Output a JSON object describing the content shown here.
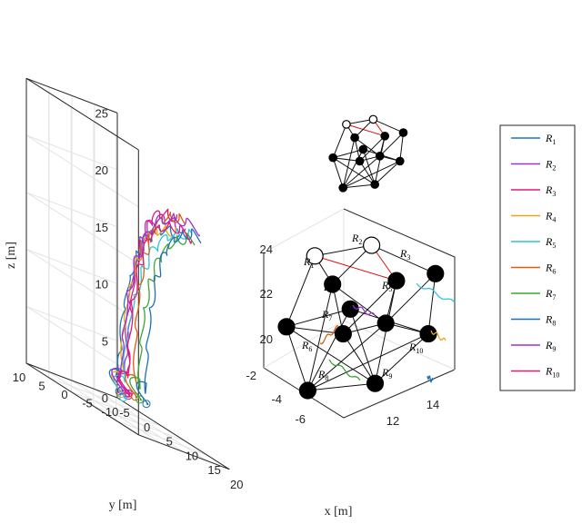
{
  "chart_data": {
    "type": "line",
    "subtype": "3d-trajectories",
    "xlabel": "x [m]",
    "ylabel": "y [m]",
    "zlabel": "z [m]",
    "xlim": [
      -5,
      20
    ],
    "ylim": [
      -10,
      10
    ],
    "zlim": [
      0,
      25
    ],
    "x_ticks": [
      "-5",
      "0",
      "5",
      "10",
      "15",
      "20"
    ],
    "y_ticks": [
      "-10",
      "-5",
      "0",
      "5",
      "10"
    ],
    "z_ticks": [
      "0",
      "5",
      "10",
      "15",
      "20",
      "25"
    ],
    "grid": true,
    "legend_position": "right",
    "series": [
      {
        "name": "R1",
        "color": "#1f77b4",
        "start_x": 0.5,
        "start_y": -5,
        "end_x": 15.5,
        "end_y": -3.2,
        "offset": -4
      },
      {
        "name": "R2",
        "color": "#9933cc",
        "start_x": 0.0,
        "start_y": -7,
        "end_x": 17.5,
        "end_y": -2.6,
        "offset": 6
      },
      {
        "name": "R3",
        "color": "#e0197d",
        "start_x": 1.5,
        "start_y": -6,
        "end_x": 15.5,
        "end_y": -3.0,
        "offset": 2
      },
      {
        "name": "R4",
        "color": "#e6a817",
        "start_x": 2.0,
        "start_y": -4,
        "end_x": 16.0,
        "end_y": -2.6,
        "offset": -2
      },
      {
        "name": "R5",
        "color": "#2ec4dd",
        "start_x": 4.5,
        "start_y": -2,
        "end_x": 18.5,
        "end_y": -3.5,
        "offset": -6
      },
      {
        "name": "R6",
        "color": "#d95f0e",
        "start_x": 0.0,
        "start_y": -9,
        "end_x": 15.0,
        "end_y": -5.0,
        "offset": 0
      },
      {
        "name": "R7",
        "color": "#3aa635",
        "start_x": 1.0,
        "start_y": -9,
        "end_x": 16.0,
        "end_y": -6.0,
        "offset": -8
      },
      {
        "name": "R8",
        "color": "#1f6fb4",
        "start_x": 2.5,
        "start_y": -9,
        "end_x": 17.5,
        "end_y": -6.0,
        "offset": -3
      },
      {
        "name": "R9",
        "color": "#9933cc",
        "start_x": -1.0,
        "start_y": -7,
        "end_x": 18.5,
        "end_y": -5.0,
        "offset": 4
      },
      {
        "name": "R10",
        "color": "#e0197d",
        "start_x": -0.5,
        "start_y": -8,
        "end_x": 17.0,
        "end_y": -5.0,
        "offset": 8
      }
    ],
    "inset": {
      "x_ticks": [
        "12",
        "14"
      ],
      "y_ticks": [
        "-2",
        "-4",
        "-6"
      ],
      "z_ticks": [
        "20",
        "22",
        "24"
      ],
      "labels": [
        "R1",
        "R2",
        "R3",
        "R4",
        "R5",
        "R6",
        "R7",
        "R8",
        "R9",
        "R10"
      ]
    }
  },
  "legend": [
    {
      "base": "R",
      "sub": "1",
      "color": "#1f77b4"
    },
    {
      "base": "R",
      "sub": "2",
      "color": "#9933cc"
    },
    {
      "base": "R",
      "sub": "3",
      "color": "#e0197d"
    },
    {
      "base": "R",
      "sub": "4",
      "color": "#e6a817"
    },
    {
      "base": "R",
      "sub": "5",
      "color": "#2ec4dd"
    },
    {
      "base": "R",
      "sub": "6",
      "color": "#d95f0e"
    },
    {
      "base": "R",
      "sub": "7",
      "color": "#3aa635"
    },
    {
      "base": "R",
      "sub": "8",
      "color": "#1f6fb4"
    },
    {
      "base": "R",
      "sub": "9",
      "color": "#9933cc"
    },
    {
      "base": "R",
      "sub": "10",
      "color": "#e0197d"
    }
  ]
}
